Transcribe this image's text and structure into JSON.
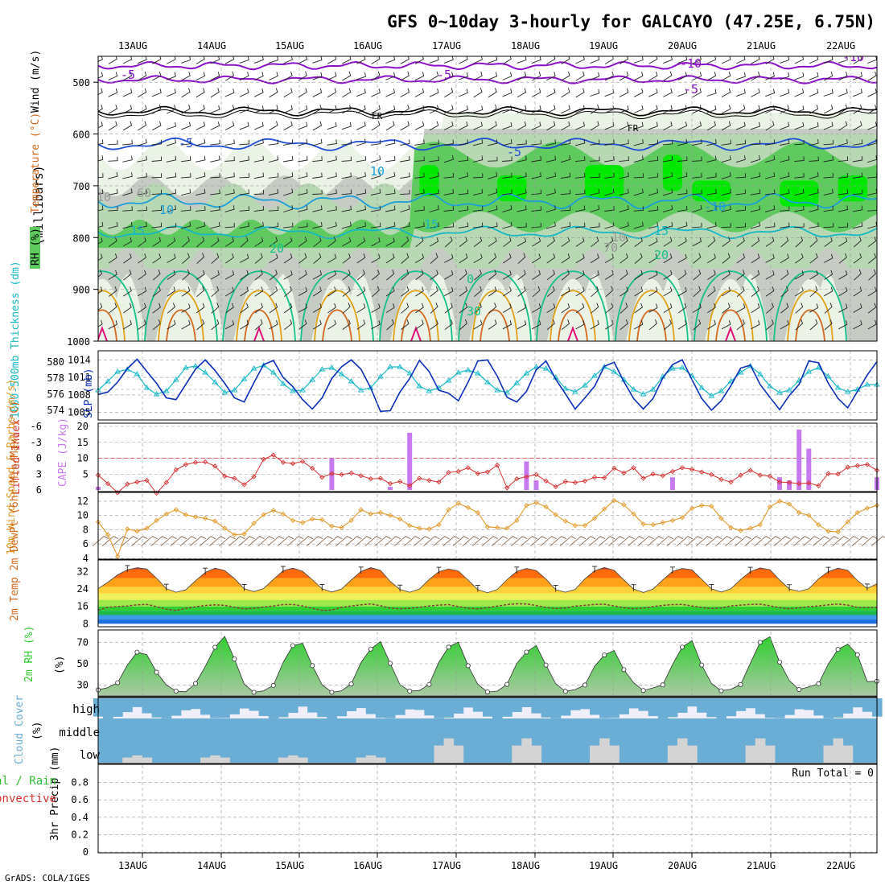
{
  "title": "GFS 0~10day 3-hourly for GALCAYO (47.25E, 6.75N)",
  "credit": "GrADS: COLA/IGES",
  "colors": {
    "rh_light": "#eaf3e6",
    "rh_mid": "#b8d7b3",
    "rh_grey": "#c6cbc4",
    "rh_green": "#5fcb5f",
    "rh_bright": "#00e800",
    "temp_purple": "#8a11c7",
    "temp_blue": "#1f4fd6",
    "temp_cyan": "#1c9fd9",
    "temp_teal": "#16b8c6",
    "temp_green": "#14c18a",
    "temp_orange": "#e3a015",
    "temp_darkorange": "#d2691e",
    "temp_magenta": "#e0107a",
    "slp": "#0b2fb8",
    "thickness": "#17b8c6",
    "lifted": "#d83131",
    "cape": "#c77af0",
    "wind": "#e19a2a",
    "barb": "#8b6a4d",
    "temp_fill_dark": "#c8391f",
    "temp_fill_orange": "#ff7f00",
    "rh2m_fill": "#2fcf2f",
    "cloud": "#6aaed6",
    "cloud_bg": "#f0eef8"
  },
  "chart_data": [
    {
      "type": "heatmap",
      "panel": "upper-air",
      "ylabel_parts": [
        "RH (%)",
        "Temperature (°C)",
        "Wind (m/s)"
      ],
      "yunit": "(millibars)",
      "yticks": [
        500,
        600,
        700,
        800,
        900,
        1000
      ],
      "ylim": [
        1000,
        450
      ],
      "dates": [
        "13AUG",
        "14AUG",
        "15AUG",
        "16AUG",
        "17AUG",
        "18AUG",
        "19AUG",
        "20AUG",
        "21AUG",
        "22AUG"
      ],
      "contour_labels": [
        "-10",
        "-5",
        "-5",
        "-5",
        "-10",
        "FR",
        "FR",
        "-5",
        "-5",
        "10",
        "10",
        "-10",
        "15",
        "15",
        "15",
        "20",
        "20",
        "0",
        "30",
        "10",
        "10",
        "70",
        "60"
      ]
    },
    {
      "type": "line",
      "panel": "slp-thickness",
      "ylabel_left": "1000-500mb Thickness (dm)",
      "ylabel_right": "SLP (mb)",
      "yticks_left": [
        574,
        576,
        578,
        580
      ],
      "yticks_right": [
        1005,
        1008,
        1011,
        1014
      ],
      "series": [
        {
          "name": "SLP",
          "values": [
            1008.1,
            1008.5,
            1010.2,
            1012.5,
            1014.1,
            1012,
            1010,
            1007.5,
            1007.2,
            1009.8,
            1012.4,
            1014,
            1012.2,
            1010,
            1007.5,
            1006.8,
            1010.1,
            1013.2,
            1013.9,
            1011,
            1009.4,
            1007.2,
            1005.6,
            1007.5,
            1010.8,
            1012.8,
            1014,
            1012.4,
            1009.2,
            1005.2,
            1005.3,
            1008.5,
            1010.8,
            1013.9,
            1012,
            1008.8,
            1008.3,
            1007,
            1010.2,
            1013.8,
            1014,
            1011.2,
            1007.6,
            1006.8,
            1008.6,
            1012.3,
            1013.8,
            1010.7,
            1008.2,
            1005.6,
            1007.5,
            1009.5,
            1012.9,
            1013.6,
            1010.3,
            1007.4,
            1005.6,
            1007.4,
            1010.9,
            1013.2,
            1014,
            1010.6,
            1007.4,
            1005.4,
            1007,
            1009.6,
            1012.6,
            1013.1,
            1009.8,
            1007.6,
            1005.5,
            1007.9,
            1009.8,
            1013.8,
            1013.5,
            1010,
            1007.4,
            1005.8,
            1008.6,
            1011.4,
            1013.7
          ]
        },
        {
          "name": "Thickness",
          "values": [
            576.5,
            577.6,
            578.8,
            579.1,
            578.5,
            576.8,
            576,
            576.4,
            577.8,
            579.3,
            579.5,
            578.7,
            577.5,
            576.2,
            576.5,
            577.9,
            579.2,
            579.6,
            578.7,
            577.3,
            576.4,
            576.5,
            577.8,
            579.1,
            579.3,
            578.5,
            577.6,
            576.5,
            576.8,
            578.2,
            579.4,
            579.4,
            578.6,
            577,
            576.4,
            576.8,
            577.7,
            578.7,
            579,
            578.6,
            577.5,
            576.5,
            576.2,
            577.4,
            578.6,
            579.4,
            579.2,
            578.1,
            576.7,
            576.3,
            577.1,
            578.3,
            579.4,
            578.8,
            577.8,
            576.6,
            576,
            576.6,
            578.2,
            579.2,
            579.3,
            578.3,
            576.8,
            575.8,
            576.4,
            577.6,
            578.7,
            579.5,
            578.5,
            577,
            576.2,
            576.5,
            577.7,
            578.8,
            579.3,
            578.2,
            576.8,
            576.3,
            576.6,
            577.2,
            577.2
          ]
        }
      ]
    },
    {
      "type": "bar",
      "panel": "cape-lifted",
      "ylabel_left": "Lifted Index",
      "ylabel_right": "CAPE (J/kg)",
      "yticks_left": [
        "-6",
        "-3",
        "0",
        "3",
        "6"
      ],
      "yticks_right": [
        "5",
        "10",
        "15",
        "20"
      ],
      "lifted_values": [
        3.2,
        4.8,
        6.5,
        4.9,
        4.5,
        4.2,
        6.6,
        4.6,
        2.2,
        1.2,
        0.8,
        0.7,
        1.5,
        3.4,
        3.8,
        5,
        3.5,
        0.2,
        -0.6,
        0.8,
        1,
        0.6,
        1.9,
        3.6,
        2.9,
        3.1,
        2.8,
        3.3,
        3.9,
        3.8,
        4.8,
        4.4,
        5.2,
        3.8,
        4.2,
        4.5,
        2.7,
        2.5,
        1.8,
        2.9,
        2.6,
        1.3,
        5.6,
        3.9,
        3.5,
        3.1,
        4.3,
        5.4,
        4.4,
        4.6,
        4.3,
        3.6,
        3.7,
        1.9,
        2.8,
        1.8,
        3.8,
        3,
        3.3,
        2.5,
        1.8,
        2.1,
        2.6,
        3.1,
        4,
        4.5,
        3.2,
        2.3,
        3.2,
        3.4,
        4.5,
        4.6,
        4.8,
        4.7,
        5.2,
        2.9,
        3,
        1.7,
        1.4,
        1.2,
        2.3
      ],
      "cape_values": [
        1,
        0,
        0,
        0,
        0,
        0,
        0,
        0,
        0,
        0,
        0,
        0,
        0,
        0,
        0,
        0,
        0,
        0,
        0,
        0,
        0,
        0,
        0,
        0,
        10,
        0,
        0,
        0,
        0,
        0,
        1,
        0,
        18,
        0,
        0,
        0,
        0,
        0,
        0,
        0,
        0,
        0,
        0,
        0,
        9,
        3,
        0,
        0,
        0,
        0,
        0,
        0,
        0,
        0,
        0,
        0,
        0,
        0,
        0,
        4,
        0,
        0,
        0,
        0,
        0,
        0,
        0,
        0,
        0,
        0,
        4,
        3,
        19,
        13,
        0,
        0,
        0,
        0,
        0,
        0,
        4
      ]
    },
    {
      "type": "line",
      "panel": "wind10m",
      "ylabel": "10m Wind Speed & Barbs (m/s)",
      "yticks": [
        4,
        6,
        8,
        10,
        12
      ],
      "values": [
        9.1,
        7.3,
        4.3,
        8.1,
        7.8,
        8.2,
        9.3,
        10.2,
        10.8,
        10.1,
        9.8,
        9.6,
        9.2,
        8.2,
        7.3,
        7.4,
        8.9,
        10.1,
        10.7,
        10.2,
        9.3,
        9,
        9.5,
        9.4,
        8.5,
        8.3,
        9.3,
        10.8,
        10.2,
        10.4,
        10,
        9.5,
        8.6,
        8.2,
        8.1,
        8.7,
        10.8,
        11.7,
        11.1,
        10.4,
        8.4,
        8.3,
        8.2,
        9.3,
        11.4,
        11.8,
        11.2,
        10.1,
        9.2,
        8.6,
        8.6,
        9.6,
        10.9,
        12.1,
        11.5,
        10.2,
        8.8,
        8.7,
        9,
        9.3,
        9.7,
        11,
        11.4,
        11.3,
        9.6,
        8.3,
        7.9,
        8.2,
        8.7,
        11.2,
        12,
        11.6,
        10.4,
        10,
        8.7,
        7.8,
        7.7,
        9.1,
        10.4,
        11,
        11.4
      ]
    },
    {
      "type": "area",
      "panel": "temp2m",
      "ylabel": "2m Temp 2m DewPt (6hr Min/Max) (°C)",
      "yticks": [
        8,
        16,
        24,
        32
      ],
      "temp_values": [
        24.2,
        27.1,
        30.5,
        32.8,
        33.8,
        33.2,
        29,
        24.2,
        22.5,
        23.6,
        27.8,
        31.6,
        33.6,
        32.5,
        28.8,
        24.1,
        22.8,
        24.2,
        28.5,
        32.4,
        33.6,
        32.2,
        28.3,
        24.1,
        22.6,
        24,
        28.2,
        32.1,
        33.8,
        32.6,
        27.5,
        23.8,
        22.5,
        24,
        28.4,
        32,
        33.2,
        32.3,
        28.1,
        23.7,
        22.3,
        23.8,
        28.3,
        32.1,
        33.5,
        32.5,
        28.6,
        23.7,
        22.5,
        23.8,
        28.7,
        32.4,
        33.9,
        32.6,
        28.2,
        24,
        22.4,
        24,
        28.2,
        32.1,
        33.5,
        32.8,
        28.5,
        24.1,
        22.6,
        24.1,
        28.4,
        32,
        33.7,
        32.9,
        28.2,
        24,
        22.9,
        24.1,
        28.7,
        32,
        33.6,
        32.6,
        27.9,
        24.3,
        26.4
      ],
      "dewpt_values": [
        14.3,
        15.6,
        15.9,
        16.2,
        16.7,
        16.9,
        15.9,
        14.7,
        14.1,
        15.1,
        15.8,
        16.4,
        16.7,
        16.5,
        15.6,
        14.8,
        15.1,
        15.7,
        16.2,
        16.8,
        16.9,
        16.2,
        15.1,
        14.2,
        14.3,
        15.5,
        16.2,
        16.7,
        17.1,
        16.3,
        15.2,
        14.9,
        15.1,
        15.6,
        16.2,
        16.6,
        16.8,
        15.9,
        15.2,
        14.8,
        15.4,
        16.1,
        16.8,
        17.2,
        17.1,
        16.4,
        15.5,
        15,
        15.3,
        16.1,
        16.5,
        16.9,
        17,
        16.2,
        15.4,
        14.9,
        15.2,
        15.9,
        16.5,
        16.8,
        16.9,
        16.2,
        15.5,
        15,
        15.3,
        16.2,
        16.6,
        16.9,
        17,
        16.3,
        15.4,
        14.9,
        15.3,
        15.9,
        16.2,
        16.7,
        17.1,
        16.6,
        15.5,
        15.4,
        15.6
      ]
    },
    {
      "type": "area",
      "panel": "rh2m",
      "ylabel": "2m RH (%)",
      "yticks": [
        30,
        50,
        70
      ],
      "values": [
        25.6,
        27.8,
        32.3,
        48.8,
        60.8,
        58.5,
        42.1,
        30.3,
        24.5,
        23.9,
        31.6,
        47.3,
        65.3,
        75.5,
        54.4,
        31.1,
        23.4,
        24.8,
        29.8,
        51.2,
        66.9,
        69.1,
        48.3,
        30.5,
        23.4,
        24.8,
        31.2,
        51.1,
        63.7,
        70.6,
        50.4,
        30.6,
        24.5,
        25.1,
        30.7,
        51.5,
        65.5,
        70.2,
        48.2,
        30.8,
        23.7,
        24.5,
        30.8,
        50.3,
        60.9,
        67,
        48.8,
        31.4,
        24.3,
        25.9,
        30.2,
        47.7,
        58.2,
        62.4,
        44.5,
        32.3,
        25.1,
        27.5,
        30.3,
        49.3,
        65.5,
        71.6,
        48.8,
        31.6,
        24.8,
        26.3,
        30.6,
        50.6,
        70,
        75.2,
        51.6,
        34.3,
        26,
        28.4,
        31.4,
        49.6,
        63.4,
        68.3,
        58.3,
        33.3,
        33.8
      ]
    },
    {
      "type": "bar",
      "panel": "cloud",
      "ylabel": "Cloud Cover (%)",
      "levels": [
        "high",
        "middle",
        "low"
      ]
    },
    {
      "type": "bar",
      "panel": "precip",
      "ylabel": "3hr Precip (mm)",
      "legend": [
        "Total / Rain",
        "Convective"
      ],
      "yticks": [
        "0",
        "0.2",
        "0.4",
        "0.6",
        "0.8"
      ],
      "run_total": "Run Total = 0",
      "values": []
    }
  ]
}
